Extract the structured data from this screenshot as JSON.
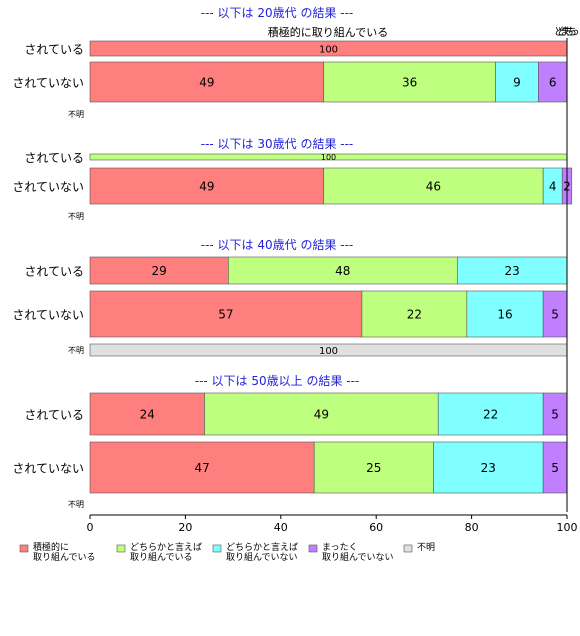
{
  "chart_data": {
    "type": "bar",
    "orientation": "horizontal",
    "stacked": "percent",
    "xlim": [
      0,
      100
    ],
    "xticks": [
      "0",
      "20",
      "40",
      "60",
      "80",
      "100"
    ],
    "grid": false,
    "legend_position": "bottom",
    "series": [
      {
        "name": "積極的に取り組んでいる",
        "lines": [
          "積極的に",
          "取り組んでいる"
        ],
        "color": "#ff7f7f"
      },
      {
        "name": "どちらかと言えば取り組んでいる",
        "lines": [
          "どちらかと言えば",
          "取り組んでいる"
        ],
        "color": "#bfff7f"
      },
      {
        "name": "どちらかと言えば取り組んでいない",
        "lines": [
          "どちらかと言えば",
          "取り組んでいない"
        ],
        "color": "#7fffff"
      },
      {
        "name": "まったく取り組んでいない",
        "lines": [
          "まったく",
          "取り組んでいない"
        ],
        "color": "#bf7fff"
      },
      {
        "name": "不明",
        "lines": [
          "不明"
        ],
        "color": "#e0e0e0"
      }
    ],
    "panels": [
      {
        "title": "--- 以下は 20歳代 の結果 ---",
        "categories": [
          {
            "label": "されている",
            "values": [
              100,
              0,
              0,
              0,
              0
            ]
          },
          {
            "label": "されていない",
            "values": [
              49,
              36,
              9,
              6,
              0
            ]
          },
          {
            "label": "不明",
            "values": [
              0,
              0,
              0,
              0,
              0
            ]
          }
        ],
        "annotations": [
          "積極的に取り組んでいる",
          "どちらかと言えば取り組んでいる",
          "どちらかと言えば取り組んでいない",
          "まったく取り組んでいない"
        ]
      },
      {
        "title": "--- 以下は 30歳代 の結果 ---",
        "categories": [
          {
            "label": "されている",
            "values": [
              0,
              100,
              0,
              0,
              0
            ]
          },
          {
            "label": "されていない",
            "values": [
              49,
              46,
              4,
              2,
              0
            ]
          },
          {
            "label": "不明",
            "values": [
              0,
              0,
              0,
              0,
              0
            ]
          }
        ]
      },
      {
        "title": "--- 以下は 40歳代 の結果 ---",
        "categories": [
          {
            "label": "されている",
            "values": [
              29,
              48,
              23,
              0,
              0
            ]
          },
          {
            "label": "されていない",
            "values": [
              57,
              22,
              16,
              5,
              0
            ]
          },
          {
            "label": "不明",
            "values": [
              0,
              0,
              0,
              0,
              100
            ]
          }
        ]
      },
      {
        "title": "--- 以下は 50歳以上 の結果 ---",
        "categories": [
          {
            "label": "されている",
            "values": [
              24,
              49,
              22,
              5,
              0
            ]
          },
          {
            "label": "されていない",
            "values": [
              47,
              25,
              23,
              5,
              0
            ]
          },
          {
            "label": "不明",
            "values": [
              0,
              0,
              0,
              0,
              0
            ]
          }
        ]
      }
    ]
  }
}
